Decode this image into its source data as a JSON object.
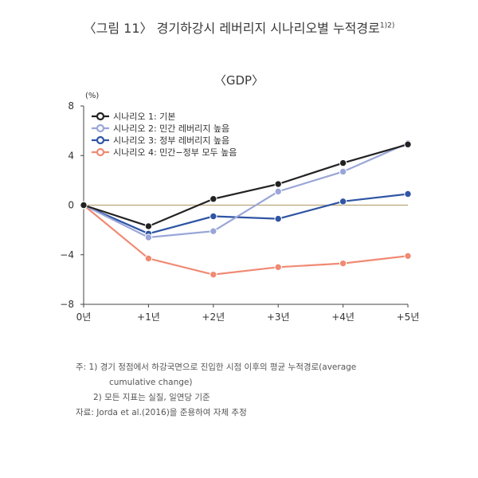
{
  "figure": {
    "title": "〈그림 11〉 경기하강시 레버리지 시나리오별 누적경로",
    "title_sup": "1)2)",
    "subtitle": "〈GDP〉"
  },
  "chart_data": {
    "type": "line",
    "ylabel": "(%)",
    "categories": [
      "0년",
      "+1년",
      "+2년",
      "+3년",
      "+4년",
      "+5년"
    ],
    "ylim": [
      -8,
      8
    ],
    "yticks": [
      "8",
      "4",
      "0",
      "−4",
      "−8"
    ],
    "ytick_values": [
      8,
      4,
      0,
      -4,
      -8
    ],
    "grid": false,
    "legend_position": "top-left",
    "series": [
      {
        "name": "시나리오 1: 기본",
        "color": "#222222",
        "values": [
          0,
          -1.7,
          0.5,
          1.7,
          3.4,
          4.9
        ]
      },
      {
        "name": "시나리오 2: 민간 레버리지 높음",
        "color": "#9aa6d8",
        "values": [
          0,
          -2.6,
          -2.1,
          1.1,
          2.7,
          5.0
        ]
      },
      {
        "name": "시나리오 3: 정부 레버리지 높음",
        "color": "#2f55a4",
        "values": [
          0,
          -2.3,
          -0.9,
          -1.1,
          0.3,
          0.9
        ]
      },
      {
        "name": "시나리오 4: 민간−정부 모두 높음",
        "color": "#f08a73",
        "values": [
          0,
          -4.3,
          -5.6,
          -5.0,
          -4.7,
          -4.1
        ]
      }
    ],
    "zero_line_color": "#b9a77a"
  },
  "notes": {
    "line1": "주: 1) 경기 정점에서 하강국면으로 진입한 시점 이후의 평균 누적경로(average",
    "line2": "cumulative change)",
    "line3": "2) 모든 지표는 실질, 일연당 기준",
    "line4": "자료: Jorda et al.(2016)을 준용하여 자체 추정"
  }
}
